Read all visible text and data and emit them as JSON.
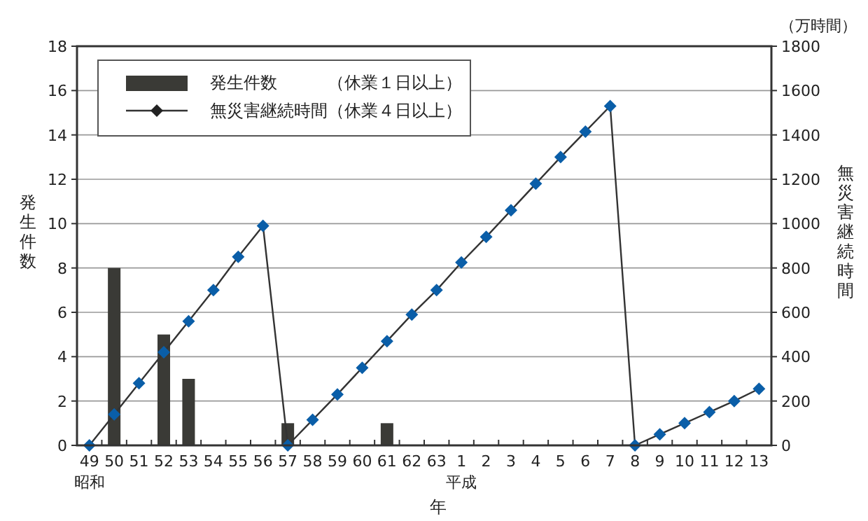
{
  "chart_data": {
    "type": "bar",
    "categories": [
      "49\n昭和",
      "50",
      "51",
      "52",
      "53",
      "54",
      "55",
      "56",
      "57",
      "58",
      "59",
      "60",
      "61",
      "62",
      "63",
      "1\n平成",
      "2",
      "3",
      "4",
      "5",
      "6",
      "7",
      "8",
      "9",
      "10",
      "11",
      "12",
      "13"
    ],
    "series": [
      {
        "name": "発生件数　　　（休業１日以上）",
        "color": "#3a3a36",
        "values": [
          null,
          8,
          null,
          5,
          3,
          null,
          null,
          null,
          1,
          null,
          null,
          null,
          1,
          null,
          null,
          null,
          null,
          null,
          null,
          null,
          null,
          null,
          null,
          null,
          null,
          null,
          null,
          null
        ]
      },
      {
        "name": "無災害継続時間（休業４日以上）",
        "type": "line",
        "axis": "y2",
        "marker": "diamond",
        "color": "#0a5ea8",
        "values": [
          0,
          140,
          280,
          420,
          560,
          700,
          850,
          990,
          0,
          115,
          230,
          350,
          470,
          590,
          700,
          825,
          940,
          1060,
          1180,
          1300,
          1415,
          1530,
          0,
          50,
          100,
          150,
          200,
          255
        ]
      }
    ],
    "ylabel": "発生件数",
    "y2label": "無災害継続時間",
    "xlabel": "年",
    "annotations": [
      "（万時間）"
    ],
    "ylim": [
      0,
      18
    ],
    "yticks": [
      0,
      2,
      4,
      6,
      8,
      10,
      12,
      14,
      16,
      18
    ],
    "y2lim": [
      0,
      1800
    ],
    "y2ticks": [
      0,
      200,
      400,
      600,
      800,
      1000,
      1200,
      1400,
      1600,
      1800
    ],
    "grid": "y",
    "legend": "top left"
  }
}
